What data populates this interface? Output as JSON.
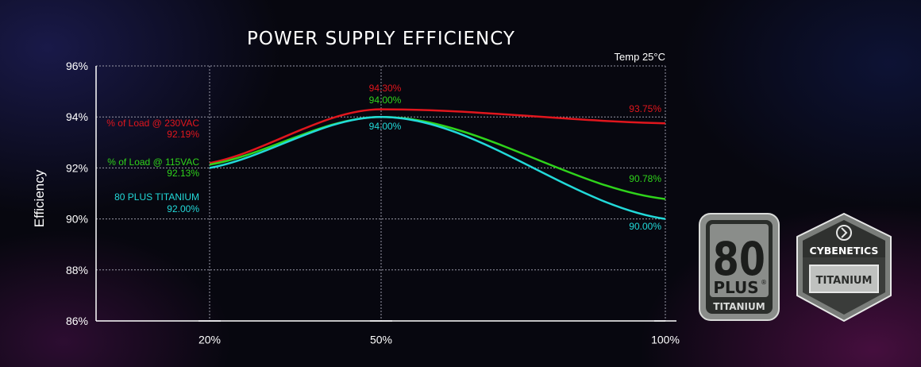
{
  "chart_data": {
    "type": "line",
    "title": "POWER SUPPLY EFFICIENCY",
    "ylabel": "Efficiency",
    "xlabel": "",
    "note": "Temp 25°C",
    "x": [
      20,
      50,
      100
    ],
    "x_tick_labels": [
      "20%",
      "50%",
      "100%"
    ],
    "y_tick_labels": [
      "96%",
      "94%",
      "92%",
      "90%",
      "88%",
      "86%"
    ],
    "y_ticks": [
      96,
      94,
      92,
      90,
      88,
      86
    ],
    "ylim": [
      86,
      96
    ],
    "grid": true,
    "series": [
      {
        "name": "% of Load @ 230VAC",
        "color": "#e0161d",
        "values": [
          92.19,
          94.3,
          93.75
        ],
        "labels": [
          "92.19%",
          "94.30%",
          "93.75%"
        ]
      },
      {
        "name": "% of Load @ 115VAC",
        "color": "#2fd31b",
        "values": [
          92.13,
          94.0,
          90.78
        ],
        "labels": [
          "92.13%",
          "94.00%",
          "90.78%"
        ]
      },
      {
        "name": "80 PLUS TITANIUM",
        "color": "#22d9d9",
        "values": [
          92.0,
          94.0,
          90.0
        ],
        "labels": [
          "92.00%",
          "94.00%",
          "90.00%"
        ]
      }
    ]
  },
  "badges": {
    "plus80": {
      "number": "80",
      "plus": "PLUS",
      "reg": "®",
      "level": "TITANIUM"
    },
    "cybenetics": {
      "brand": "CYBENETICS",
      "level": "TITANIUM"
    }
  }
}
